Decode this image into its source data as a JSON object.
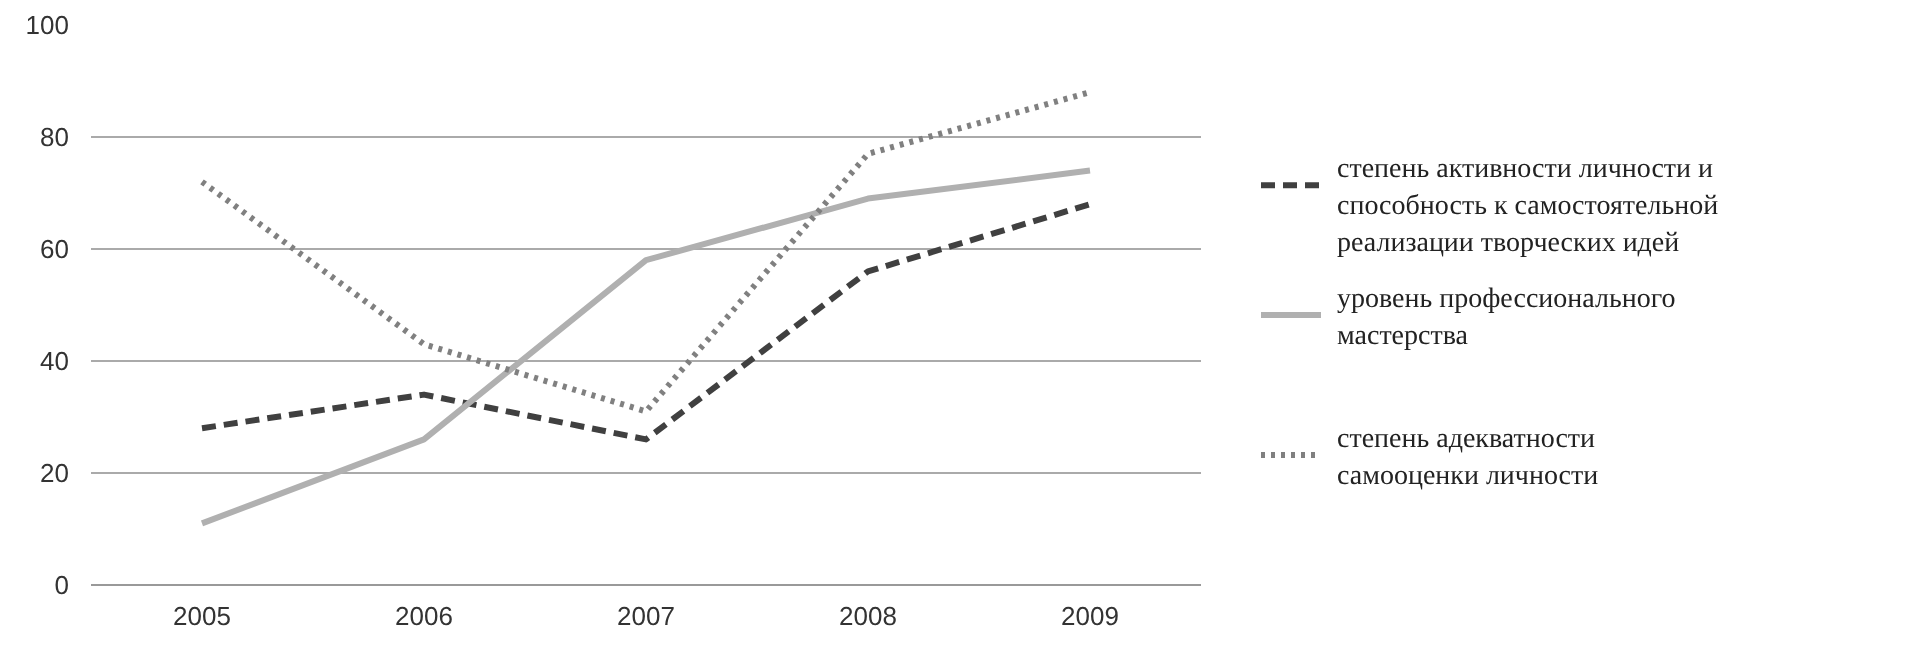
{
  "chart_data": {
    "type": "line",
    "categories": [
      "2005",
      "2006",
      "2007",
      "2008",
      "2009"
    ],
    "ylim": [
      0,
      100
    ],
    "yticks": [
      0,
      20,
      40,
      60,
      80,
      100
    ],
    "grid": "y",
    "legend": "right",
    "marker": "none",
    "series": [
      {
        "name": "степень активности личности и способность к самостоятельной реализации творческих идей",
        "color": "#404040",
        "line_style": "dashed",
        "values": [
          28,
          34,
          26,
          56,
          68
        ]
      },
      {
        "name": "уровень профессионального мастерства",
        "color": "#b0b0b0",
        "line_style": "solid",
        "values": [
          11,
          26,
          58,
          69,
          74
        ]
      },
      {
        "name": "степень адекватности самооценки личности",
        "color": "#808080",
        "line_style": "dotted",
        "values": [
          72,
          43,
          31,
          77,
          88
        ]
      }
    ]
  }
}
